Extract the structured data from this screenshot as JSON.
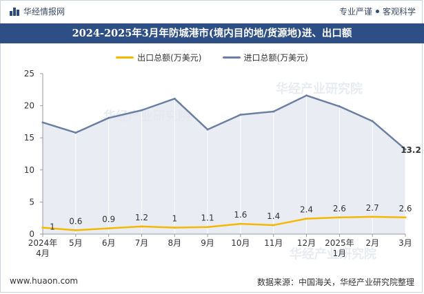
{
  "header": {
    "brand": "华经情报网",
    "slogan_left": "专业严谨",
    "slogan_right": "客观科学"
  },
  "footer": {
    "url": "www.huaon.com",
    "source": "数据来源：中国海关，华经产业研究院整理"
  },
  "watermark": "华经产业研究院",
  "colors": {
    "export": "#f5b800",
    "import": "#6b7fa3",
    "title_bg": "#2e4f85",
    "area": "#e3e7ef"
  },
  "chart_data": {
    "type": "line",
    "title": "2024-2025年3月年防城港市(境内目的地/货源地)进、出口额",
    "categories": [
      "2024年\n4月",
      "5月",
      "6月",
      "7月",
      "8月",
      "9月",
      "10月",
      "11月",
      "12月",
      "2025年\n1月",
      "2月",
      "3月"
    ],
    "ylim": [
      0,
      25
    ],
    "yticks": [
      0,
      5,
      10,
      15,
      20,
      25
    ],
    "grid": false,
    "legend_position": "top-center",
    "series": [
      {
        "name": "出口总额(万美元)",
        "color": "#f5b800",
        "values": [
          1,
          0.6,
          0.9,
          1.2,
          1,
          1.1,
          1.6,
          1.4,
          2.4,
          2.6,
          2.7,
          2.6
        ],
        "labels": [
          "1",
          "0.6",
          "0.9",
          "1.2",
          "1",
          "1.1",
          "1.6",
          "1.4",
          "2.4",
          "2.6",
          "2.7",
          "2.6"
        ]
      },
      {
        "name": "进口总额(万美元)",
        "color": "#6b7fa3",
        "values": [
          17.4,
          15.8,
          18.1,
          19.3,
          21.1,
          16.3,
          18.6,
          19.1,
          21.6,
          19.9,
          17.6,
          13.2
        ],
        "labels": [
          "",
          "",
          "",
          "",
          "",
          "",
          "",
          "",
          "",
          "",
          "",
          "13.2"
        ]
      }
    ]
  }
}
